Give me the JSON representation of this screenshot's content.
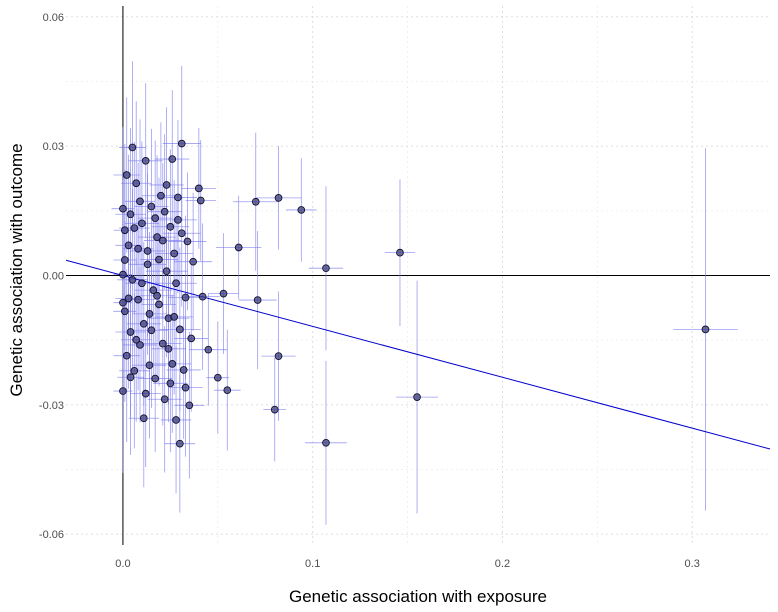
{
  "chart_data": {
    "type": "scatter",
    "xlabel": "Genetic association with exposure",
    "ylabel": "Genetic association with outcome",
    "xlim": [
      -0.03,
      0.341
    ],
    "ylim": [
      -0.0625,
      0.0625
    ],
    "xticks": [
      0.0,
      0.1,
      0.2,
      0.3
    ],
    "xtick_labels": [
      "0.0",
      "0.1",
      "0.2",
      "0.3"
    ],
    "yticks": [
      -0.06,
      -0.03,
      0.0,
      0.03,
      0.06
    ],
    "ytick_labels": [
      "-0.06",
      "-0.03",
      "0.00",
      "0.03",
      "0.06"
    ],
    "grid": true,
    "zero_lines": true,
    "fit_line": {
      "intercept": 0.0,
      "slope": -0.118
    },
    "points": [
      {
        "x": 0.307,
        "y": -0.0125,
        "xerr": 0.017,
        "yerr": 0.042
      },
      {
        "x": 0.155,
        "y": -0.0282,
        "xerr": 0.011,
        "yerr": 0.027
      },
      {
        "x": 0.146,
        "y": 0.0053,
        "xerr": 0.008,
        "yerr": 0.017
      },
      {
        "x": 0.107,
        "y": -0.0388,
        "xerr": 0.011,
        "yerr": 0.019
      },
      {
        "x": 0.107,
        "y": 0.0017,
        "xerr": 0.009,
        "yerr": 0.019
      },
      {
        "x": 0.094,
        "y": 0.0152,
        "xerr": 0.008,
        "yerr": 0.012
      },
      {
        "x": 0.082,
        "y": 0.018,
        "xerr": 0.012,
        "yerr": 0.012
      },
      {
        "x": 0.082,
        "y": -0.0187,
        "xerr": 0.009,
        "yerr": 0.015
      },
      {
        "x": 0.08,
        "y": -0.0311,
        "xerr": 0.006,
        "yerr": 0.012
      },
      {
        "x": 0.07,
        "y": 0.0171,
        "xerr": 0.012,
        "yerr": 0.016
      },
      {
        "x": 0.071,
        "y": -0.0057,
        "xerr": 0.01,
        "yerr": 0.016
      },
      {
        "x": 0.061,
        "y": 0.0065,
        "xerr": 0.012,
        "yerr": 0.012
      },
      {
        "x": 0.055,
        "y": -0.0266,
        "xerr": 0.007,
        "yerr": 0.014
      },
      {
        "x": 0.053,
        "y": -0.0042,
        "xerr": 0.008,
        "yerr": 0.014
      },
      {
        "x": 0.05,
        "y": -0.0237,
        "xerr": 0.006,
        "yerr": 0.013
      },
      {
        "x": 0.045,
        "y": -0.0172,
        "xerr": 0.01,
        "yerr": 0.013
      },
      {
        "x": 0.042,
        "y": -0.0049,
        "xerr": 0.009,
        "yerr": 0.017
      },
      {
        "x": 0.04,
        "y": 0.0202,
        "xerr": 0.009,
        "yerr": 0.014
      },
      {
        "x": 0.041,
        "y": 0.0174,
        "xerr": 0.008,
        "yerr": 0.014
      },
      {
        "x": 0.035,
        "y": -0.0301,
        "xerr": 0.008,
        "yerr": 0.017
      },
      {
        "x": 0.033,
        "y": -0.026,
        "xerr": 0.009,
        "yerr": 0.016
      },
      {
        "x": 0.034,
        "y": 0.0079,
        "xerr": 0.01,
        "yerr": 0.016
      },
      {
        "x": 0.033,
        "y": -0.0051,
        "xerr": 0.009,
        "yerr": 0.019
      },
      {
        "x": 0.031,
        "y": 0.0306,
        "xerr": 0.01,
        "yerr": 0.018
      },
      {
        "x": 0.03,
        "y": -0.039,
        "xerr": 0.008,
        "yerr": 0.016
      },
      {
        "x": 0.03,
        "y": -0.0125,
        "xerr": 0.011,
        "yerr": 0.019
      },
      {
        "x": 0.028,
        "y": -0.0335,
        "xerr": 0.008,
        "yerr": 0.017
      },
      {
        "x": 0.029,
        "y": 0.0181,
        "xerr": 0.01,
        "yerr": 0.018
      },
      {
        "x": 0.028,
        "y": -0.0018,
        "xerr": 0.011,
        "yerr": 0.019
      },
      {
        "x": 0.027,
        "y": 0.0051,
        "xerr": 0.01,
        "yerr": 0.017
      },
      {
        "x": 0.026,
        "y": -0.0205,
        "xerr": 0.01,
        "yerr": 0.016
      },
      {
        "x": 0.025,
        "y": 0.0113,
        "xerr": 0.01,
        "yerr": 0.018
      },
      {
        "x": 0.025,
        "y": -0.025,
        "xerr": 0.009,
        "yerr": 0.016
      },
      {
        "x": 0.024,
        "y": -0.0099,
        "xerr": 0.011,
        "yerr": 0.02
      },
      {
        "x": 0.023,
        "y": 0.001,
        "xerr": 0.011,
        "yerr": 0.02
      },
      {
        "x": 0.022,
        "y": -0.0287,
        "xerr": 0.009,
        "yerr": 0.017
      },
      {
        "x": 0.022,
        "y": 0.0148,
        "xerr": 0.009,
        "yerr": 0.018
      },
      {
        "x": 0.021,
        "y": -0.0158,
        "xerr": 0.01,
        "yerr": 0.019
      },
      {
        "x": 0.02,
        "y": 0.0185,
        "xerr": 0.01,
        "yerr": 0.017
      },
      {
        "x": 0.019,
        "y": -0.0067,
        "xerr": 0.009,
        "yerr": 0.019
      },
      {
        "x": 0.018,
        "y": 0.0089,
        "xerr": 0.01,
        "yerr": 0.019
      },
      {
        "x": 0.017,
        "y": -0.0239,
        "xerr": 0.009,
        "yerr": 0.017
      },
      {
        "x": 0.016,
        "y": -0.0034,
        "xerr": 0.01,
        "yerr": 0.02
      },
      {
        "x": 0.015,
        "y": 0.016,
        "xerr": 0.009,
        "yerr": 0.018
      },
      {
        "x": 0.014,
        "y": -0.0208,
        "xerr": 0.009,
        "yerr": 0.017
      },
      {
        "x": 0.013,
        "y": 0.0026,
        "xerr": 0.01,
        "yerr": 0.021
      },
      {
        "x": 0.012,
        "y": 0.0266,
        "xerr": 0.009,
        "yerr": 0.018
      },
      {
        "x": 0.011,
        "y": -0.0331,
        "xerr": 0.008,
        "yerr": 0.016
      },
      {
        "x": 0.011,
        "y": -0.0112,
        "xerr": 0.009,
        "yerr": 0.019
      },
      {
        "x": 0.01,
        "y": 0.0121,
        "xerr": 0.009,
        "yerr": 0.019
      },
      {
        "x": 0.009,
        "y": -0.0161,
        "xerr": 0.009,
        "yerr": 0.018
      },
      {
        "x": 0.008,
        "y": 0.0062,
        "xerr": 0.008,
        "yerr": 0.02
      },
      {
        "x": 0.008,
        "y": -0.0056,
        "xerr": 0.009,
        "yerr": 0.021
      },
      {
        "x": 0.007,
        "y": 0.0214,
        "xerr": 0.008,
        "yerr": 0.019
      },
      {
        "x": 0.006,
        "y": -0.0221,
        "xerr": 0.008,
        "yerr": 0.018
      },
      {
        "x": 0.005,
        "y": 0.0297,
        "xerr": 0.007,
        "yerr": 0.02
      },
      {
        "x": 0.005,
        "y": -0.001,
        "xerr": 0.008,
        "yerr": 0.021
      },
      {
        "x": 0.004,
        "y": 0.0142,
        "xerr": 0.008,
        "yerr": 0.02
      },
      {
        "x": 0.004,
        "y": -0.0131,
        "xerr": 0.008,
        "yerr": 0.02
      },
      {
        "x": 0.003,
        "y": 0.007,
        "xerr": 0.007,
        "yerr": 0.021
      },
      {
        "x": 0.002,
        "y": -0.0186,
        "xerr": 0.007,
        "yerr": 0.02
      },
      {
        "x": 0.002,
        "y": 0.0233,
        "xerr": 0.007,
        "yerr": 0.018
      },
      {
        "x": 0.001,
        "y": 0.0036,
        "xerr": 0.006,
        "yerr": 0.021
      },
      {
        "x": 0.001,
        "y": -0.0083,
        "xerr": 0.006,
        "yerr": 0.021
      },
      {
        "x": 0.0,
        "y": 0.0155,
        "xerr": 0.006,
        "yerr": 0.019
      },
      {
        "x": 0.0,
        "y": -0.0268,
        "xerr": 0.005,
        "yerr": 0.019
      },
      {
        "x": 0.0,
        "y": 0.0002,
        "xerr": 0.005,
        "yerr": 0.022
      },
      {
        "x": 0.0,
        "y": -0.0063,
        "xerr": 0.005,
        "yerr": 0.021
      },
      {
        "x": 0.026,
        "y": 0.027,
        "xerr": 0.009,
        "yerr": 0.016
      },
      {
        "x": 0.036,
        "y": -0.0146,
        "xerr": 0.009,
        "yerr": 0.017
      },
      {
        "x": 0.019,
        "y": 0.0037,
        "xerr": 0.01,
        "yerr": 0.019
      },
      {
        "x": 0.031,
        "y": 0.0098,
        "xerr": 0.01,
        "yerr": 0.017
      },
      {
        "x": 0.014,
        "y": -0.0089,
        "xerr": 0.009,
        "yerr": 0.019
      },
      {
        "x": 0.024,
        "y": -0.017,
        "xerr": 0.009,
        "yerr": 0.017
      },
      {
        "x": 0.009,
        "y": 0.0172,
        "xerr": 0.008,
        "yerr": 0.019
      },
      {
        "x": 0.017,
        "y": 0.0133,
        "xerr": 0.009,
        "yerr": 0.018
      },
      {
        "x": 0.003,
        "y": -0.0053,
        "xerr": 0.007,
        "yerr": 0.021
      },
      {
        "x": 0.012,
        "y": -0.0274,
        "xerr": 0.008,
        "yerr": 0.017
      },
      {
        "x": 0.021,
        "y": 0.0081,
        "xerr": 0.01,
        "yerr": 0.018
      },
      {
        "x": 0.027,
        "y": -0.0096,
        "xerr": 0.01,
        "yerr": 0.018
      },
      {
        "x": 0.006,
        "y": 0.011,
        "xerr": 0.008,
        "yerr": 0.02
      },
      {
        "x": 0.037,
        "y": 0.0032,
        "xerr": 0.01,
        "yerr": 0.016
      },
      {
        "x": 0.015,
        "y": -0.0127,
        "xerr": 0.009,
        "yerr": 0.018
      },
      {
        "x": 0.001,
        "y": 0.0105,
        "xerr": 0.006,
        "yerr": 0.02
      },
      {
        "x": 0.032,
        "y": -0.0219,
        "xerr": 0.009,
        "yerr": 0.016
      },
      {
        "x": 0.01,
        "y": -0.0018,
        "xerr": 0.009,
        "yerr": 0.02
      },
      {
        "x": 0.023,
        "y": 0.021,
        "xerr": 0.009,
        "yerr": 0.018
      },
      {
        "x": 0.004,
        "y": -0.0236,
        "xerr": 0.007,
        "yerr": 0.018
      },
      {
        "x": 0.018,
        "y": -0.0047,
        "xerr": 0.009,
        "yerr": 0.019
      },
      {
        "x": 0.029,
        "y": 0.0129,
        "xerr": 0.01,
        "yerr": 0.017
      },
      {
        "x": 0.013,
        "y": 0.0057,
        "xerr": 0.009,
        "yerr": 0.02
      },
      {
        "x": 0.007,
        "y": -0.0149,
        "xerr": 0.008,
        "yerr": 0.019
      }
    ]
  }
}
